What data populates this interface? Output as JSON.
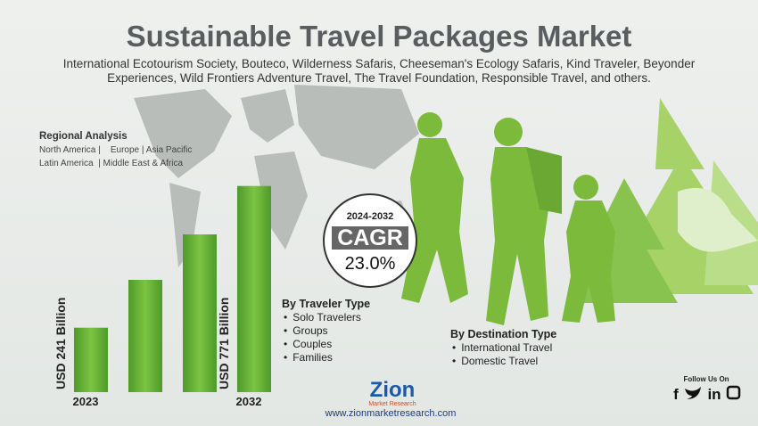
{
  "header": {
    "title": "Sustainable Travel Packages Market",
    "subtitle": "International Ecotourism Society, Bouteco, Wilderness Safaris, Cheeseman's Ecology Safaris, Kind Traveler, Beyonder Experiences, Wild Frontiers Adventure Travel, The Travel Foundation, Responsible Travel, and others."
  },
  "regional": {
    "title": "Regional Analysis",
    "lines": [
      "North America |    Europe | Asia Pacific",
      "Latin America  | Middle East & Africa"
    ]
  },
  "chart_data": {
    "type": "bar",
    "categories": [
      "2023",
      null,
      null,
      "2032"
    ],
    "values": [
      241,
      420,
      590,
      771
    ],
    "value_labels": [
      "USD 241 Billion",
      null,
      null,
      "USD 771 Billion"
    ],
    "ylim": [
      0,
      800
    ],
    "color": "#6cb33e"
  },
  "cagr": {
    "period": "2024-2032",
    "label": "CAGR",
    "value": "23.0%"
  },
  "segments": [
    {
      "title": "By Traveler Type",
      "items": [
        "Solo Travelers",
        "Groups",
        "Couples",
        "Families"
      ]
    },
    {
      "title": "By Destination Type",
      "items": [
        "International Travel",
        "Domestic Travel"
      ]
    }
  ],
  "footer": {
    "logo": "Zion",
    "logo_sub": "Market Research",
    "url": "www.zionmarketresearch.com",
    "follow": "Follow Us On",
    "social": [
      "f",
      "in"
    ]
  }
}
